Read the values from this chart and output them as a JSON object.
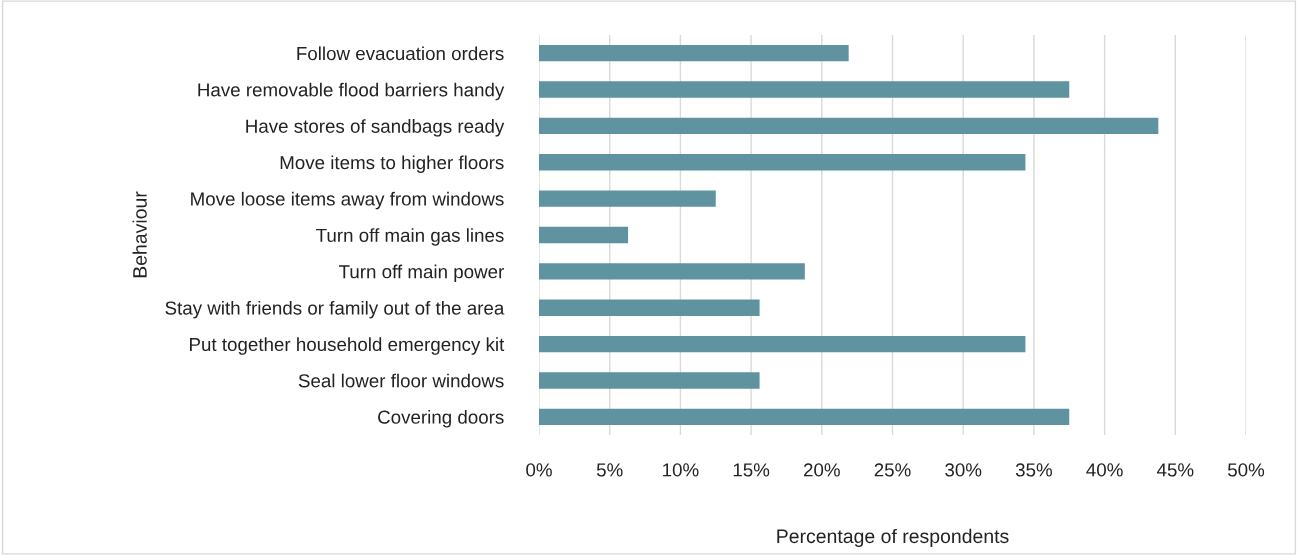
{
  "chart_data": {
    "type": "bar",
    "orientation": "horizontal",
    "xlabel": "Percentage of respondents",
    "ylabel": "Behaviour",
    "categories": [
      "Follow evacuation orders",
      "Have removable flood barriers handy",
      "Have stores of sandbags ready",
      "Move items to higher floors",
      "Move loose items away from windows",
      "Turn off main gas lines",
      "Turn off main power",
      "Stay with friends or family out of the area",
      "Put together household emergency kit",
      "Seal lower floor windows",
      "Covering doors"
    ],
    "values": [
      21.9,
      37.5,
      43.8,
      34.4,
      12.5,
      6.3,
      18.8,
      15.6,
      34.4,
      15.6,
      37.5
    ],
    "color": "#5f939f",
    "xlim": [
      0,
      50
    ],
    "xticks": [
      {
        "value": 0,
        "label": "0%"
      },
      {
        "value": 5,
        "label": "5%"
      },
      {
        "value": 10,
        "label": "10%"
      },
      {
        "value": 15,
        "label": "15%"
      },
      {
        "value": 20,
        "label": "20%"
      },
      {
        "value": 25,
        "label": "25%"
      },
      {
        "value": 30,
        "label": "30%"
      },
      {
        "value": 35,
        "label": "35%"
      },
      {
        "value": 40,
        "label": "40%"
      },
      {
        "value": 45,
        "label": "45%"
      },
      {
        "value": 50,
        "label": "50%"
      }
    ],
    "grid": "x"
  }
}
